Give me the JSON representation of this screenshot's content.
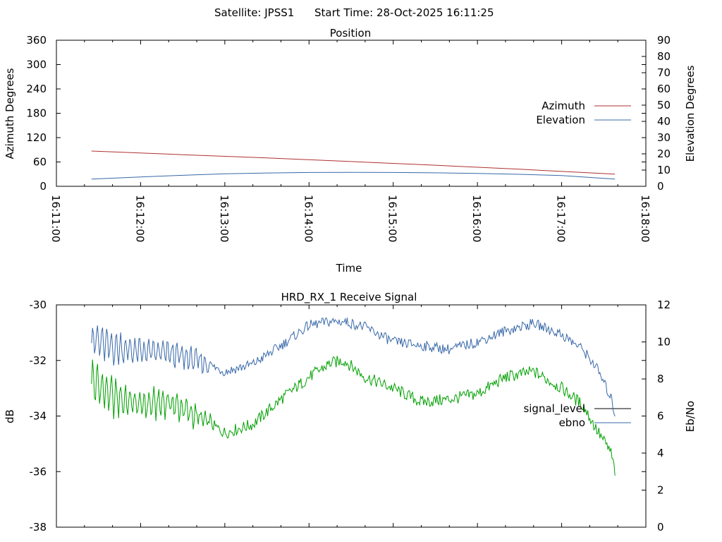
{
  "header": {
    "satellite": "Satellite: JPSS1",
    "start_time": "Start Time: 28-Oct-2025 16:11:25"
  },
  "colors": {
    "azimuth": "#b03030",
    "elevation": "#3868a8",
    "signal_level": "#00a000",
    "ebno": "#3868a8",
    "legend_signal_level": "#000000"
  },
  "chart_data": [
    {
      "type": "line",
      "title": "Position",
      "xlabel": "Time",
      "ylabel": "Azimuth Degrees",
      "y2label": "Elevation Degrees",
      "xlim": [
        "16:11:00",
        "16:18:00"
      ],
      "ylim": [
        0,
        360
      ],
      "y2lim": [
        0,
        90
      ],
      "x_ticks": [
        "16:11:00",
        "16:12:00",
        "16:13:00",
        "16:14:00",
        "16:15:00",
        "16:16:00",
        "16:17:00",
        "16:18:00"
      ],
      "y_ticks": [
        0,
        60,
        120,
        180,
        240,
        300,
        360
      ],
      "y2_ticks": [
        0,
        10,
        20,
        30,
        40,
        50,
        60,
        70,
        80,
        90
      ],
      "legend": "right",
      "series": [
        {
          "name": "Azimuth",
          "axis": "y",
          "x": [
            "16:11:25",
            "16:12:30",
            "16:13:30",
            "16:14:30",
            "16:15:30",
            "16:16:30",
            "16:17:38"
          ],
          "values": [
            87,
            78,
            70,
            61,
            52,
            42,
            30
          ]
        },
        {
          "name": "Elevation",
          "axis": "y2",
          "x": [
            "16:11:25",
            "16:12:00",
            "16:12:30",
            "16:13:00",
            "16:13:30",
            "16:14:00",
            "16:14:30",
            "16:15:00",
            "16:15:30",
            "16:16:00",
            "16:16:30",
            "16:17:00",
            "16:17:38"
          ],
          "values": [
            4.5,
            5.8,
            6.8,
            7.7,
            8.2,
            8.5,
            8.6,
            8.5,
            8.3,
            7.9,
            7.4,
            6.6,
            4.5
          ]
        }
      ]
    },
    {
      "type": "line",
      "title": "HRD_RX_1 Receive Signal",
      "ylabel": "dB",
      "y2label": "Eb/No",
      "xlim": [
        "16:11:00",
        "16:18:00"
      ],
      "ylim": [
        -38,
        -30
      ],
      "y2lim": [
        0,
        12
      ],
      "y_ticks": [
        -30,
        -32,
        -34,
        -36,
        -38
      ],
      "y2_ticks": [
        0,
        2,
        4,
        6,
        8,
        10,
        12
      ],
      "legend": "right",
      "series": [
        {
          "name": "signal_level",
          "axis": "y",
          "x": [
            "16:11:25",
            "16:11:40",
            "16:12:00",
            "16:12:20",
            "16:12:40",
            "16:13:00",
            "16:13:20",
            "16:13:40",
            "16:14:00",
            "16:14:15",
            "16:14:25",
            "16:14:40",
            "16:15:00",
            "16:15:20",
            "16:15:40",
            "16:16:00",
            "16:16:20",
            "16:16:40",
            "16:17:00",
            "16:17:15",
            "16:17:25",
            "16:17:35",
            "16:17:38"
          ],
          "values": [
            -32.7,
            -33.3,
            -33.6,
            -33.5,
            -34.0,
            -34.6,
            -34.3,
            -33.4,
            -32.6,
            -32.1,
            -32.0,
            -32.6,
            -33.0,
            -33.5,
            -33.4,
            -33.2,
            -32.6,
            -32.4,
            -33.0,
            -33.6,
            -34.5,
            -35.3,
            -36.0
          ]
        },
        {
          "name": "ebno",
          "axis": "y2",
          "x": [
            "16:11:25",
            "16:11:40",
            "16:12:00",
            "16:12:20",
            "16:12:40",
            "16:13:00",
            "16:13:20",
            "16:13:40",
            "16:14:00",
            "16:14:15",
            "16:14:25",
            "16:14:40",
            "16:15:00",
            "16:15:20",
            "16:15:40",
            "16:16:00",
            "16:16:20",
            "16:16:40",
            "16:17:00",
            "16:17:15",
            "16:17:25",
            "16:17:35",
            "16:17:38"
          ],
          "values": [
            10.2,
            9.7,
            9.5,
            9.4,
            9.0,
            8.4,
            8.8,
            9.8,
            10.9,
            11.1,
            11.1,
            10.8,
            10.0,
            9.8,
            9.6,
            10.0,
            10.6,
            11.0,
            10.4,
            9.6,
            8.6,
            7.0,
            6.1
          ]
        }
      ]
    }
  ]
}
